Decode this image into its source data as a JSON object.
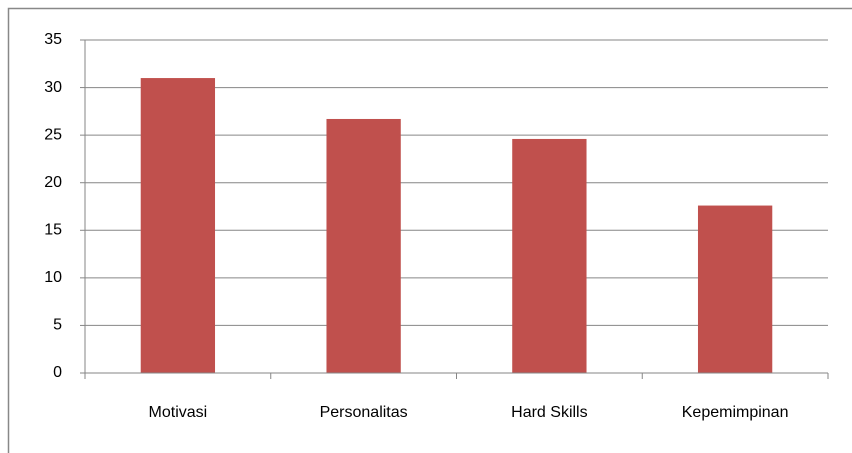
{
  "chart_data": {
    "type": "bar",
    "categories": [
      "Motivasi",
      "Personalitas",
      "Hard Skills",
      "Kepemimpinan"
    ],
    "values": [
      31,
      26.7,
      24.6,
      17.6
    ],
    "color": "#c0504d",
    "ylim": [
      0,
      35
    ],
    "yticks": [
      0,
      5,
      10,
      15,
      20,
      25,
      30,
      35
    ],
    "grid": true
  }
}
